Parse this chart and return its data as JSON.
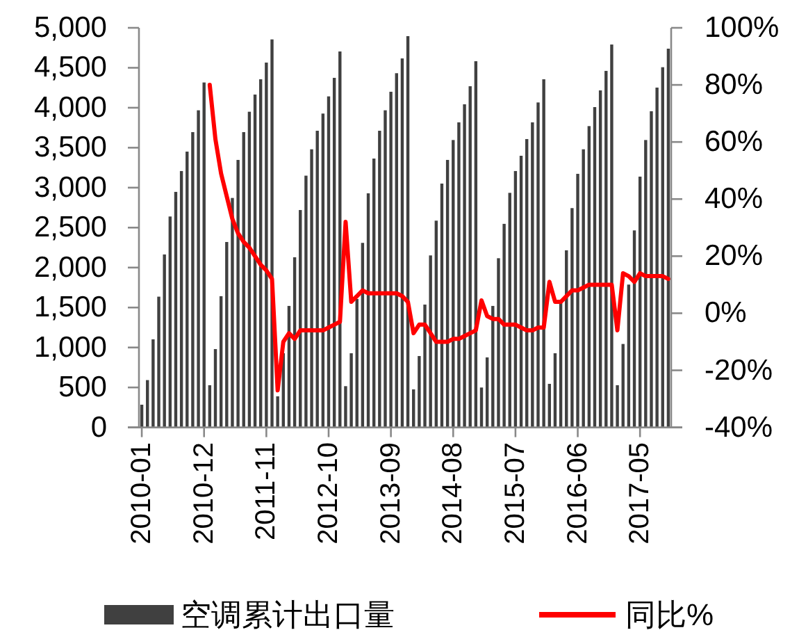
{
  "chart_data": {
    "type": "bar",
    "categories": [
      "2010-01",
      null,
      null,
      null,
      null,
      null,
      null,
      null,
      null,
      null,
      null,
      "2010-12",
      null,
      null,
      null,
      null,
      null,
      null,
      null,
      null,
      null,
      null,
      "2011-11",
      null,
      null,
      null,
      null,
      null,
      null,
      null,
      null,
      null,
      null,
      "2012-10",
      null,
      null,
      null,
      null,
      null,
      null,
      null,
      null,
      null,
      null,
      "2013-09",
      null,
      null,
      null,
      null,
      null,
      null,
      null,
      null,
      null,
      null,
      "2014-08",
      null,
      null,
      null,
      null,
      null,
      null,
      null,
      null,
      null,
      null,
      "2015-07",
      null,
      null,
      null,
      null,
      null,
      null,
      null,
      null,
      null,
      null,
      "2016-06",
      null,
      null,
      null,
      null,
      null,
      null,
      null,
      null,
      null,
      null,
      "2017-05",
      null,
      null,
      null,
      null,
      null
    ],
    "series": [
      {
        "name": "空调累计出口量",
        "color": "#404040",
        "values": [
          284,
          592,
          1102,
          1636,
          2164,
          2639,
          2947,
          3208,
          3451,
          3695,
          3968,
          4316,
          528,
          980,
          1642,
          2320,
          2871,
          3347,
          3695,
          3950,
          4165,
          4356,
          4565,
          4855,
          389,
          928,
          1520,
          2129,
          2720,
          3150,
          3480,
          3712,
          3927,
          4142,
          4374,
          4704,
          516,
          928,
          1607,
          2309,
          2929,
          3364,
          3712,
          3968,
          4200,
          4432,
          4617,
          4896,
          476,
          893,
          1537,
          2152,
          2587,
          3051,
          3347,
          3596,
          3817,
          4043,
          4269,
          4582,
          499,
          876,
          1520,
          2117,
          2547,
          2935,
          3208,
          3399,
          3608,
          3817,
          4066,
          4356,
          545,
          928,
          1560,
          2216,
          2744,
          3173,
          3480,
          3770,
          4008,
          4217,
          4461,
          4791,
          528,
          1044,
          1787,
          2465,
          3138,
          3596,
          3956,
          4252,
          4507,
          4739
        ]
      },
      {
        "name": "同比%",
        "type": "line",
        "axis": "y2",
        "color": "#ff0000",
        "values": [
          null,
          null,
          null,
          null,
          null,
          null,
          null,
          null,
          null,
          null,
          null,
          null,
          80,
          61,
          49,
          41,
          33,
          28,
          25,
          23,
          20,
          17,
          15,
          12,
          -27,
          -10,
          -7,
          -9,
          -6,
          -6,
          -6,
          -6,
          -6,
          -5,
          -4,
          -3,
          32,
          4,
          6,
          8,
          7,
          7,
          7,
          7,
          7,
          7,
          6,
          4,
          -7,
          -4,
          -4,
          -7,
          -10,
          -10,
          -10,
          -9,
          -9,
          -8,
          -7,
          -6,
          4.5,
          -1,
          -2,
          -2,
          -4,
          -4,
          -4,
          -5,
          -6,
          -6,
          -5,
          -5,
          11,
          4,
          4,
          6,
          8,
          8,
          9,
          10,
          10,
          10,
          10,
          10,
          -6,
          14,
          13,
          11,
          14,
          13,
          13,
          13,
          13,
          12
        ]
      }
    ],
    "ylim": [
      0,
      5000
    ],
    "yticks": [
      0,
      500,
      {
        "value": 1000,
        "label": "1,000"
      },
      {
        "value": 1500,
        "label": "1,500"
      },
      {
        "value": 2000,
        "label": "2,000"
      },
      {
        "value": 2500,
        "label": "2,500"
      },
      {
        "value": 3000,
        "label": "3,000"
      },
      {
        "value": 3500,
        "label": "3,500"
      },
      {
        "value": 4000,
        "label": "4,000"
      },
      {
        "value": 4500,
        "label": "4,500"
      },
      {
        "value": 5000,
        "label": "5,000"
      }
    ],
    "y2lim": [
      -40,
      100
    ],
    "y2ticks": [
      {
        "value": -40,
        "label": "-40%"
      },
      {
        "value": -20,
        "label": "-20%"
      },
      {
        "value": 0,
        "label": "0%"
      },
      {
        "value": 20,
        "label": "20%"
      },
      {
        "value": 40,
        "label": "40%"
      },
      {
        "value": 60,
        "label": "60%"
      },
      {
        "value": 80,
        "label": "80%"
      },
      {
        "value": 100,
        "label": "100%"
      }
    ],
    "legend": "bottom",
    "grid": false
  }
}
